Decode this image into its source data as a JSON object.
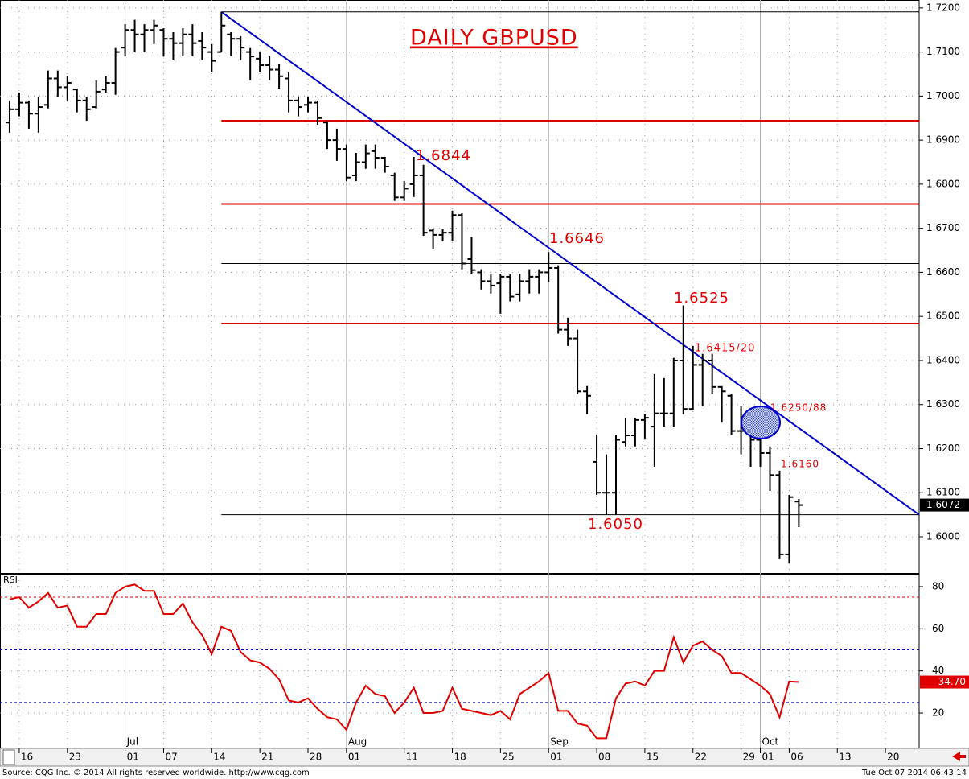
{
  "chart_data": [
    {
      "type": "ohlc",
      "title": "DAILY GBPUSD",
      "color": "#000000",
      "x": [
        -1,
        0,
        1,
        2,
        3,
        4,
        5,
        6,
        7,
        8,
        9,
        10,
        11,
        12,
        13,
        14,
        15,
        16,
        17,
        18,
        19,
        20,
        21,
        22,
        23,
        24,
        25,
        26,
        27,
        28,
        29,
        30,
        31,
        32,
        33,
        34,
        35,
        36,
        37,
        38,
        39,
        40,
        41,
        42,
        43,
        44,
        45,
        46,
        47,
        48,
        49,
        50,
        51,
        52,
        53,
        54,
        55,
        56,
        57,
        58,
        59,
        60,
        61,
        62,
        63,
        64,
        65,
        66,
        67,
        68,
        69,
        70,
        71,
        72,
        73,
        74,
        75,
        76,
        77,
        78,
        79,
        80,
        81
      ],
      "open": [
        1.694,
        1.697,
        1.6985,
        1.696,
        1.698,
        1.704,
        1.702,
        1.7015,
        1.699,
        1.6975,
        1.7015,
        1.703,
        1.711,
        1.715,
        1.714,
        1.715,
        1.715,
        1.713,
        1.712,
        1.714,
        1.7125,
        1.71,
        1.71,
        1.714,
        1.713,
        1.71,
        1.7085,
        1.707,
        1.706,
        1.704,
        1.699,
        1.698,
        1.6985,
        1.694,
        1.69,
        1.688,
        1.682,
        1.685,
        1.6875,
        1.686,
        1.682,
        1.677,
        1.68,
        1.682,
        1.6695,
        1.6685,
        1.669,
        1.673,
        1.663,
        1.66,
        1.658,
        1.6575,
        1.659,
        1.655,
        1.658,
        1.659,
        1.66,
        1.661,
        1.647,
        1.645,
        1.633,
        1.617,
        1.61,
        1.61,
        1.6215,
        1.623,
        1.6265,
        1.625,
        1.628,
        1.628,
        1.64,
        1.629,
        1.639,
        1.64,
        1.634,
        1.632,
        1.624,
        1.624,
        1.622,
        1.619,
        1.614,
        1.596,
        1.608
      ],
      "high": [
        1.699,
        1.7008,
        1.699,
        1.6999,
        1.7058,
        1.7058,
        1.7045,
        1.7017,
        1.6999,
        1.7036,
        1.7045,
        1.7109,
        1.7163,
        1.7173,
        1.7163,
        1.7173,
        1.7154,
        1.7145,
        1.7154,
        1.7163,
        1.7145,
        1.7118,
        1.7191,
        1.7145,
        1.7136,
        1.7109,
        1.71,
        1.709,
        1.7072,
        1.7054,
        1.6999,
        1.6999,
        1.699,
        1.6944,
        1.6926,
        1.689,
        1.6871,
        1.689,
        1.689,
        1.6862,
        1.6826,
        1.6807,
        1.6862,
        1.6844,
        1.6698,
        1.6698,
        1.674,
        1.6734,
        1.668,
        1.6607,
        1.6597,
        1.6597,
        1.6597,
        1.6597,
        1.6607,
        1.6607,
        1.6646,
        1.6616,
        1.6497,
        1.647,
        1.6342,
        1.6232,
        1.6187,
        1.6232,
        1.6269,
        1.6269,
        1.6278,
        1.6369,
        1.636,
        1.6406,
        1.6525,
        1.6433,
        1.6415,
        1.6415,
        1.6342,
        1.6324,
        1.6296,
        1.6259,
        1.6232,
        1.6205,
        1.615,
        1.6095,
        1.6086
      ],
      "low": [
        1.6917,
        1.6954,
        1.6926,
        1.6917,
        1.6972,
        1.6999,
        1.699,
        1.6963,
        1.6944,
        1.6972,
        1.7008,
        1.7003,
        1.709,
        1.71,
        1.71,
        1.7118,
        1.709,
        1.7081,
        1.709,
        1.709,
        1.7081,
        1.7054,
        1.71,
        1.709,
        1.7081,
        1.7036,
        1.7054,
        1.7036,
        1.7017,
        1.6963,
        1.6954,
        1.6963,
        1.6935,
        1.688,
        1.6853,
        1.6807,
        1.6807,
        1.6835,
        1.6835,
        1.6826,
        1.6762,
        1.6762,
        1.6771,
        1.6683,
        1.6652,
        1.667,
        1.667,
        1.6607,
        1.6597,
        1.6561,
        1.6552,
        1.6506,
        1.6534,
        1.6534,
        1.6552,
        1.6552,
        1.6579,
        1.6461,
        1.6433,
        1.6324,
        1.6278,
        1.6095,
        1.605,
        1.605,
        1.6205,
        1.6205,
        1.6223,
        1.6159,
        1.625,
        1.625,
        1.6278,
        1.6287,
        1.6296,
        1.6324,
        1.6259,
        1.6232,
        1.6187,
        1.6159,
        1.6159,
        1.6104,
        1.5949,
        1.594,
        1.6022
      ],
      "close": [
        1.697,
        1.6985,
        1.696,
        1.6975,
        1.704,
        1.702,
        1.703,
        1.699,
        1.697,
        1.701,
        1.703,
        1.71,
        1.715,
        1.714,
        1.715,
        1.716,
        1.713,
        1.712,
        1.714,
        1.712,
        1.711,
        1.708,
        1.716,
        1.713,
        1.711,
        1.709,
        1.707,
        1.706,
        1.7045,
        1.699,
        1.6975,
        1.6985,
        1.695,
        1.69,
        1.688,
        1.6815,
        1.685,
        1.687,
        1.686,
        1.684,
        1.677,
        1.679,
        1.682,
        1.669,
        1.6685,
        1.669,
        1.673,
        1.662,
        1.6605,
        1.658,
        1.657,
        1.659,
        1.6545,
        1.658,
        1.659,
        1.66,
        1.661,
        1.647,
        1.645,
        1.633,
        1.632,
        1.61,
        1.61,
        1.622,
        1.623,
        1.6265,
        1.627,
        1.628,
        1.628,
        1.64,
        1.629,
        1.639,
        1.64,
        1.634,
        1.633,
        1.624,
        1.624,
        1.622,
        1.619,
        1.614,
        1.596,
        1.609,
        1.6072
      ],
      "xlim": [
        -2,
        93.5
      ],
      "ylim": [
        1.5916,
        1.7218
      ],
      "yticks": [
        {
          "value": 1.6,
          "label": "1.6000"
        },
        {
          "value": 1.61,
          "label": "1.6100"
        },
        {
          "value": 1.62,
          "label": "1.6200"
        },
        {
          "value": 1.63,
          "label": "1.6300"
        },
        {
          "value": 1.64,
          "label": "1.6400"
        },
        {
          "value": 1.65,
          "label": "1.6500"
        },
        {
          "value": 1.66,
          "label": "1.6600"
        },
        {
          "value": 1.67,
          "label": "1.6700"
        },
        {
          "value": 1.68,
          "label": "1.6800"
        },
        {
          "value": 1.69,
          "label": "1.6900"
        },
        {
          "value": 1.7,
          "label": "1.7000"
        },
        {
          "value": 1.71,
          "label": "1.7100"
        },
        {
          "value": 1.72,
          "label": "1.7200"
        }
      ],
      "xticks": [
        {
          "value": 0,
          "label": "16"
        },
        {
          "value": 5,
          "label": "23"
        },
        {
          "value": 11,
          "label": "01"
        },
        {
          "value": 15,
          "label": "07"
        },
        {
          "value": 20,
          "label": "14"
        },
        {
          "value": 25,
          "label": "21"
        },
        {
          "value": 30,
          "label": "28"
        },
        {
          "value": 34,
          "label": "01"
        },
        {
          "value": 40,
          "label": "11"
        },
        {
          "value": 45,
          "label": "18"
        },
        {
          "value": 50,
          "label": "25"
        },
        {
          "value": 55,
          "label": "01"
        },
        {
          "value": 60,
          "label": "08"
        },
        {
          "value": 65,
          "label": "15"
        },
        {
          "value": 70,
          "label": "22"
        },
        {
          "value": 75,
          "label": "29"
        },
        {
          "value": 77,
          "label": "01"
        },
        {
          "value": 80,
          "label": "06"
        },
        {
          "value": 85,
          "label": "13"
        },
        {
          "value": 90,
          "label": "20"
        }
      ],
      "month_labels": [
        {
          "value": 11,
          "label": "Jul"
        },
        {
          "value": 34,
          "label": "Aug"
        },
        {
          "value": 55,
          "label": "Sep"
        },
        {
          "value": 77,
          "label": "Oct"
        }
      ],
      "hlines": [
        {
          "value": 1.7191,
          "color": "#000000"
        },
        {
          "value": 1.6944,
          "color": "#e00000"
        },
        {
          "value": 1.6755,
          "color": "#e00000"
        },
        {
          "value": 1.662,
          "color": "#000000"
        },
        {
          "value": 1.6484,
          "color": "#e00000"
        },
        {
          "value": 1.605,
          "color": "#000000"
        }
      ],
      "hline_start": 21,
      "trendline": {
        "x": [
          21,
          93.5
        ],
        "y": [
          1.7191,
          1.605
        ],
        "color": "#0000cc"
      },
      "annotations": [
        "1.6844",
        "1.6646",
        "1.6525",
        "1.6050",
        "1.6415/20",
        "1.6250/88",
        "1.6160"
      ],
      "annotation_color": "#e00000"
    },
    {
      "type": "line",
      "title": "RSI",
      "color": "#e00000",
      "values": [
        74,
        75,
        70,
        73,
        77,
        70,
        71,
        61,
        61,
        67,
        67,
        77,
        80,
        81,
        78,
        78,
        67,
        67,
        72,
        63,
        57,
        48,
        61,
        59,
        49,
        45,
        44,
        41,
        36,
        26,
        25,
        27,
        22,
        18,
        17,
        12,
        25,
        33,
        29,
        28,
        20,
        25,
        32,
        20,
        20,
        21,
        32,
        22,
        21,
        20,
        19,
        21,
        17,
        29,
        32,
        35,
        39,
        21,
        21,
        15,
        14,
        8,
        8,
        27,
        34,
        35,
        33,
        40,
        40,
        56,
        44,
        52,
        54,
        50,
        47,
        39,
        39,
        36,
        33,
        29,
        18,
        35,
        34.7
      ],
      "last_label": "34.70",
      "ylim": [
        3.2,
        86.1
      ],
      "yticks": [
        20,
        40,
        60,
        80
      ],
      "levels": [
        {
          "value": 75,
          "color": "#e00000"
        },
        {
          "value": 50,
          "color": "#0000cc"
        },
        {
          "value": 25,
          "color": "#0000cc"
        }
      ]
    }
  ],
  "footer": {
    "source": "Source: CQG Inc. © 2014 All rights reserved worldwide. http://www.cqg.com",
    "timestamp": "Tue Oct 07 2014 06:43:14"
  }
}
